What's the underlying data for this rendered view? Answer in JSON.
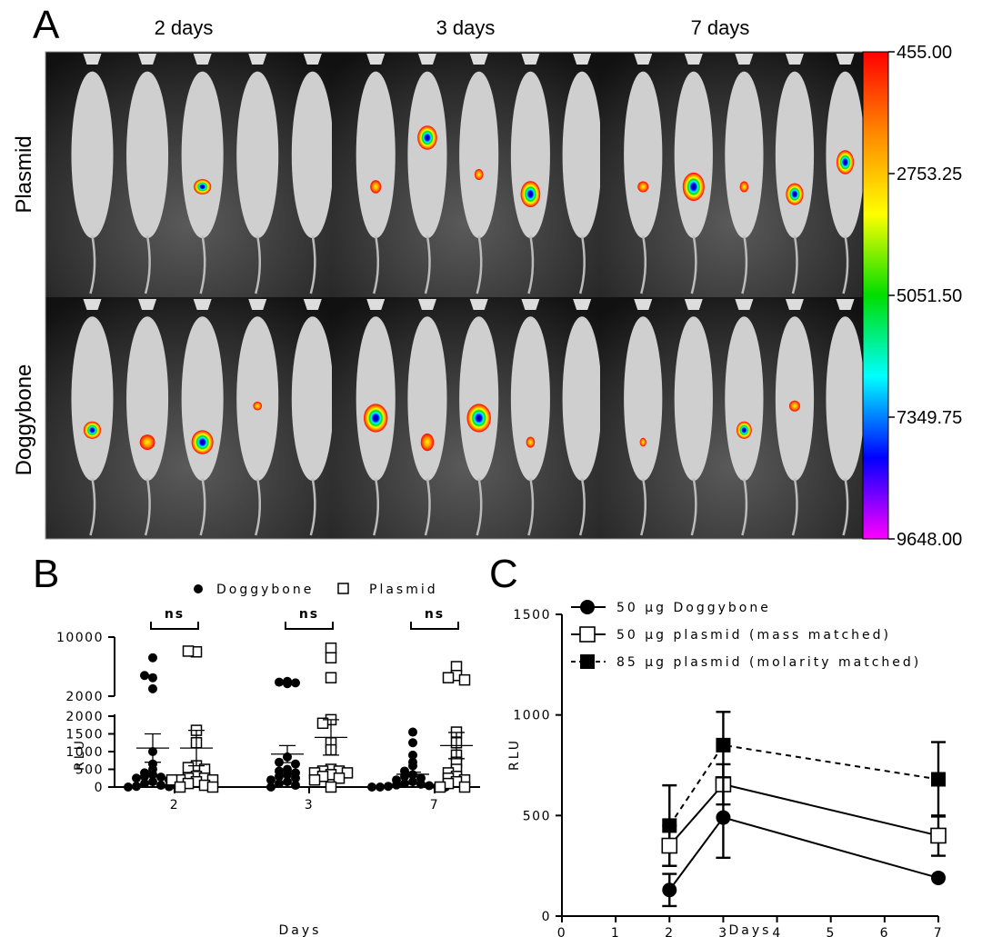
{
  "figure": {
    "panel_a_letter": "A",
    "panel_b_letter": "B",
    "panel_c_letter": "C"
  },
  "panel_a": {
    "time_headers": [
      "2 days",
      "3 days",
      "7 days"
    ],
    "row_labels": [
      "Plasmid",
      "Doggybone"
    ],
    "colorbar": {
      "ticks": [
        "455.00",
        "2753.25",
        "5051.50",
        "7349.75",
        "9648.00"
      ],
      "colors": [
        "#ff0000",
        "#ff8800",
        "#ffff00",
        "#00dd00",
        "#00ffff",
        "#0000ff",
        "#ff00ff"
      ]
    },
    "image_bg": "#3a3a3a"
  },
  "chart_data": [
    {
      "panel": "B",
      "type": "scatter",
      "xlabel": "Days",
      "ylabel": "RLU",
      "x_categories": [
        "2",
        "3",
        "7"
      ],
      "y_ticks_lower": [
        "0",
        "500",
        "1000",
        "1500",
        "2000"
      ],
      "y_ticks_upper": [
        "2000",
        "10000"
      ],
      "ylim_lower": [
        0,
        2000
      ],
      "ylim_upper": [
        2000,
        10000
      ],
      "significance": [
        "ns",
        "ns",
        "ns"
      ],
      "series": [
        {
          "name": "Doggybone",
          "marker": "filled-circle",
          "points": {
            "2": [
              7200,
              4500,
              4800,
              3000,
              1000,
              650,
              500,
              400,
              350,
              300,
              280,
              250,
              200,
              150,
              100,
              50,
              20,
              10,
              0,
              0
            ],
            "3": [
              4000,
              3900,
              3700,
              3800,
              850,
              700,
              650,
              500,
              450,
              400,
              350,
              300,
              250,
              200,
              150,
              100,
              50,
              0
            ],
            "7": [
              1550,
              1250,
              900,
              700,
              600,
              450,
              350,
              300,
              250,
              200,
              150,
              100,
              80,
              60,
              40,
              20,
              10,
              0,
              0,
              0
            ]
          },
          "mean": {
            "2": 1100,
            "3": 930,
            "7": 360
          },
          "sem": {
            "2": 400,
            "3": 240,
            "7": 60
          }
        },
        {
          "name": "Plasmid",
          "marker": "open-square",
          "points": {
            "2": [
              8000,
              8100,
              1600,
              1250,
              600,
              550,
              500,
              300,
              250,
              250,
              200,
              200,
              200,
              150,
              100,
              50,
              0,
              0
            ],
            "3": [
              8500,
              7200,
              4500,
              1900,
              1800,
              1250,
              1050,
              500,
              450,
              450,
              400,
              400,
              350,
              300,
              250,
              200,
              0
            ],
            "7": [
              6000,
              4800,
              4500,
              4200,
              1550,
              1250,
              900,
              700,
              500,
              400,
              300,
              250,
              200,
              150,
              100,
              0,
              0
            ]
          },
          "mean": {
            "2": 1100,
            "3": 1400,
            "7": 1170
          },
          "sem": {
            "2": 500,
            "3": 500,
            "7": 370
          }
        }
      ]
    },
    {
      "panel": "C",
      "type": "line",
      "xlabel": "Days",
      "ylabel": "RLU",
      "x_ticks": [
        "0",
        "1",
        "2",
        "3",
        "4",
        "5",
        "6",
        "7"
      ],
      "y_ticks": [
        "0",
        "500",
        "1000",
        "1500"
      ],
      "xlim": [
        0,
        7
      ],
      "ylim": [
        0,
        1500
      ],
      "series": [
        {
          "name": "50 µg Doggybone",
          "marker": "filled-circle",
          "line": "solid",
          "x": [
            2,
            3,
            7
          ],
          "y": [
            130,
            490,
            190
          ],
          "err": [
            80,
            200,
            0
          ]
        },
        {
          "name": "50 µg plasmid (mass matched)",
          "marker": "open-square",
          "line": "solid",
          "x": [
            2,
            3,
            7
          ],
          "y": [
            350,
            655,
            400
          ],
          "err": [
            100,
            100,
            100
          ]
        },
        {
          "name": "85 µg plasmid (molarity matched)",
          "marker": "filled-square",
          "line": "dashed",
          "x": [
            2,
            3,
            7
          ],
          "y": [
            450,
            850,
            680
          ],
          "err": [
            200,
            165,
            185
          ]
        }
      ]
    }
  ]
}
